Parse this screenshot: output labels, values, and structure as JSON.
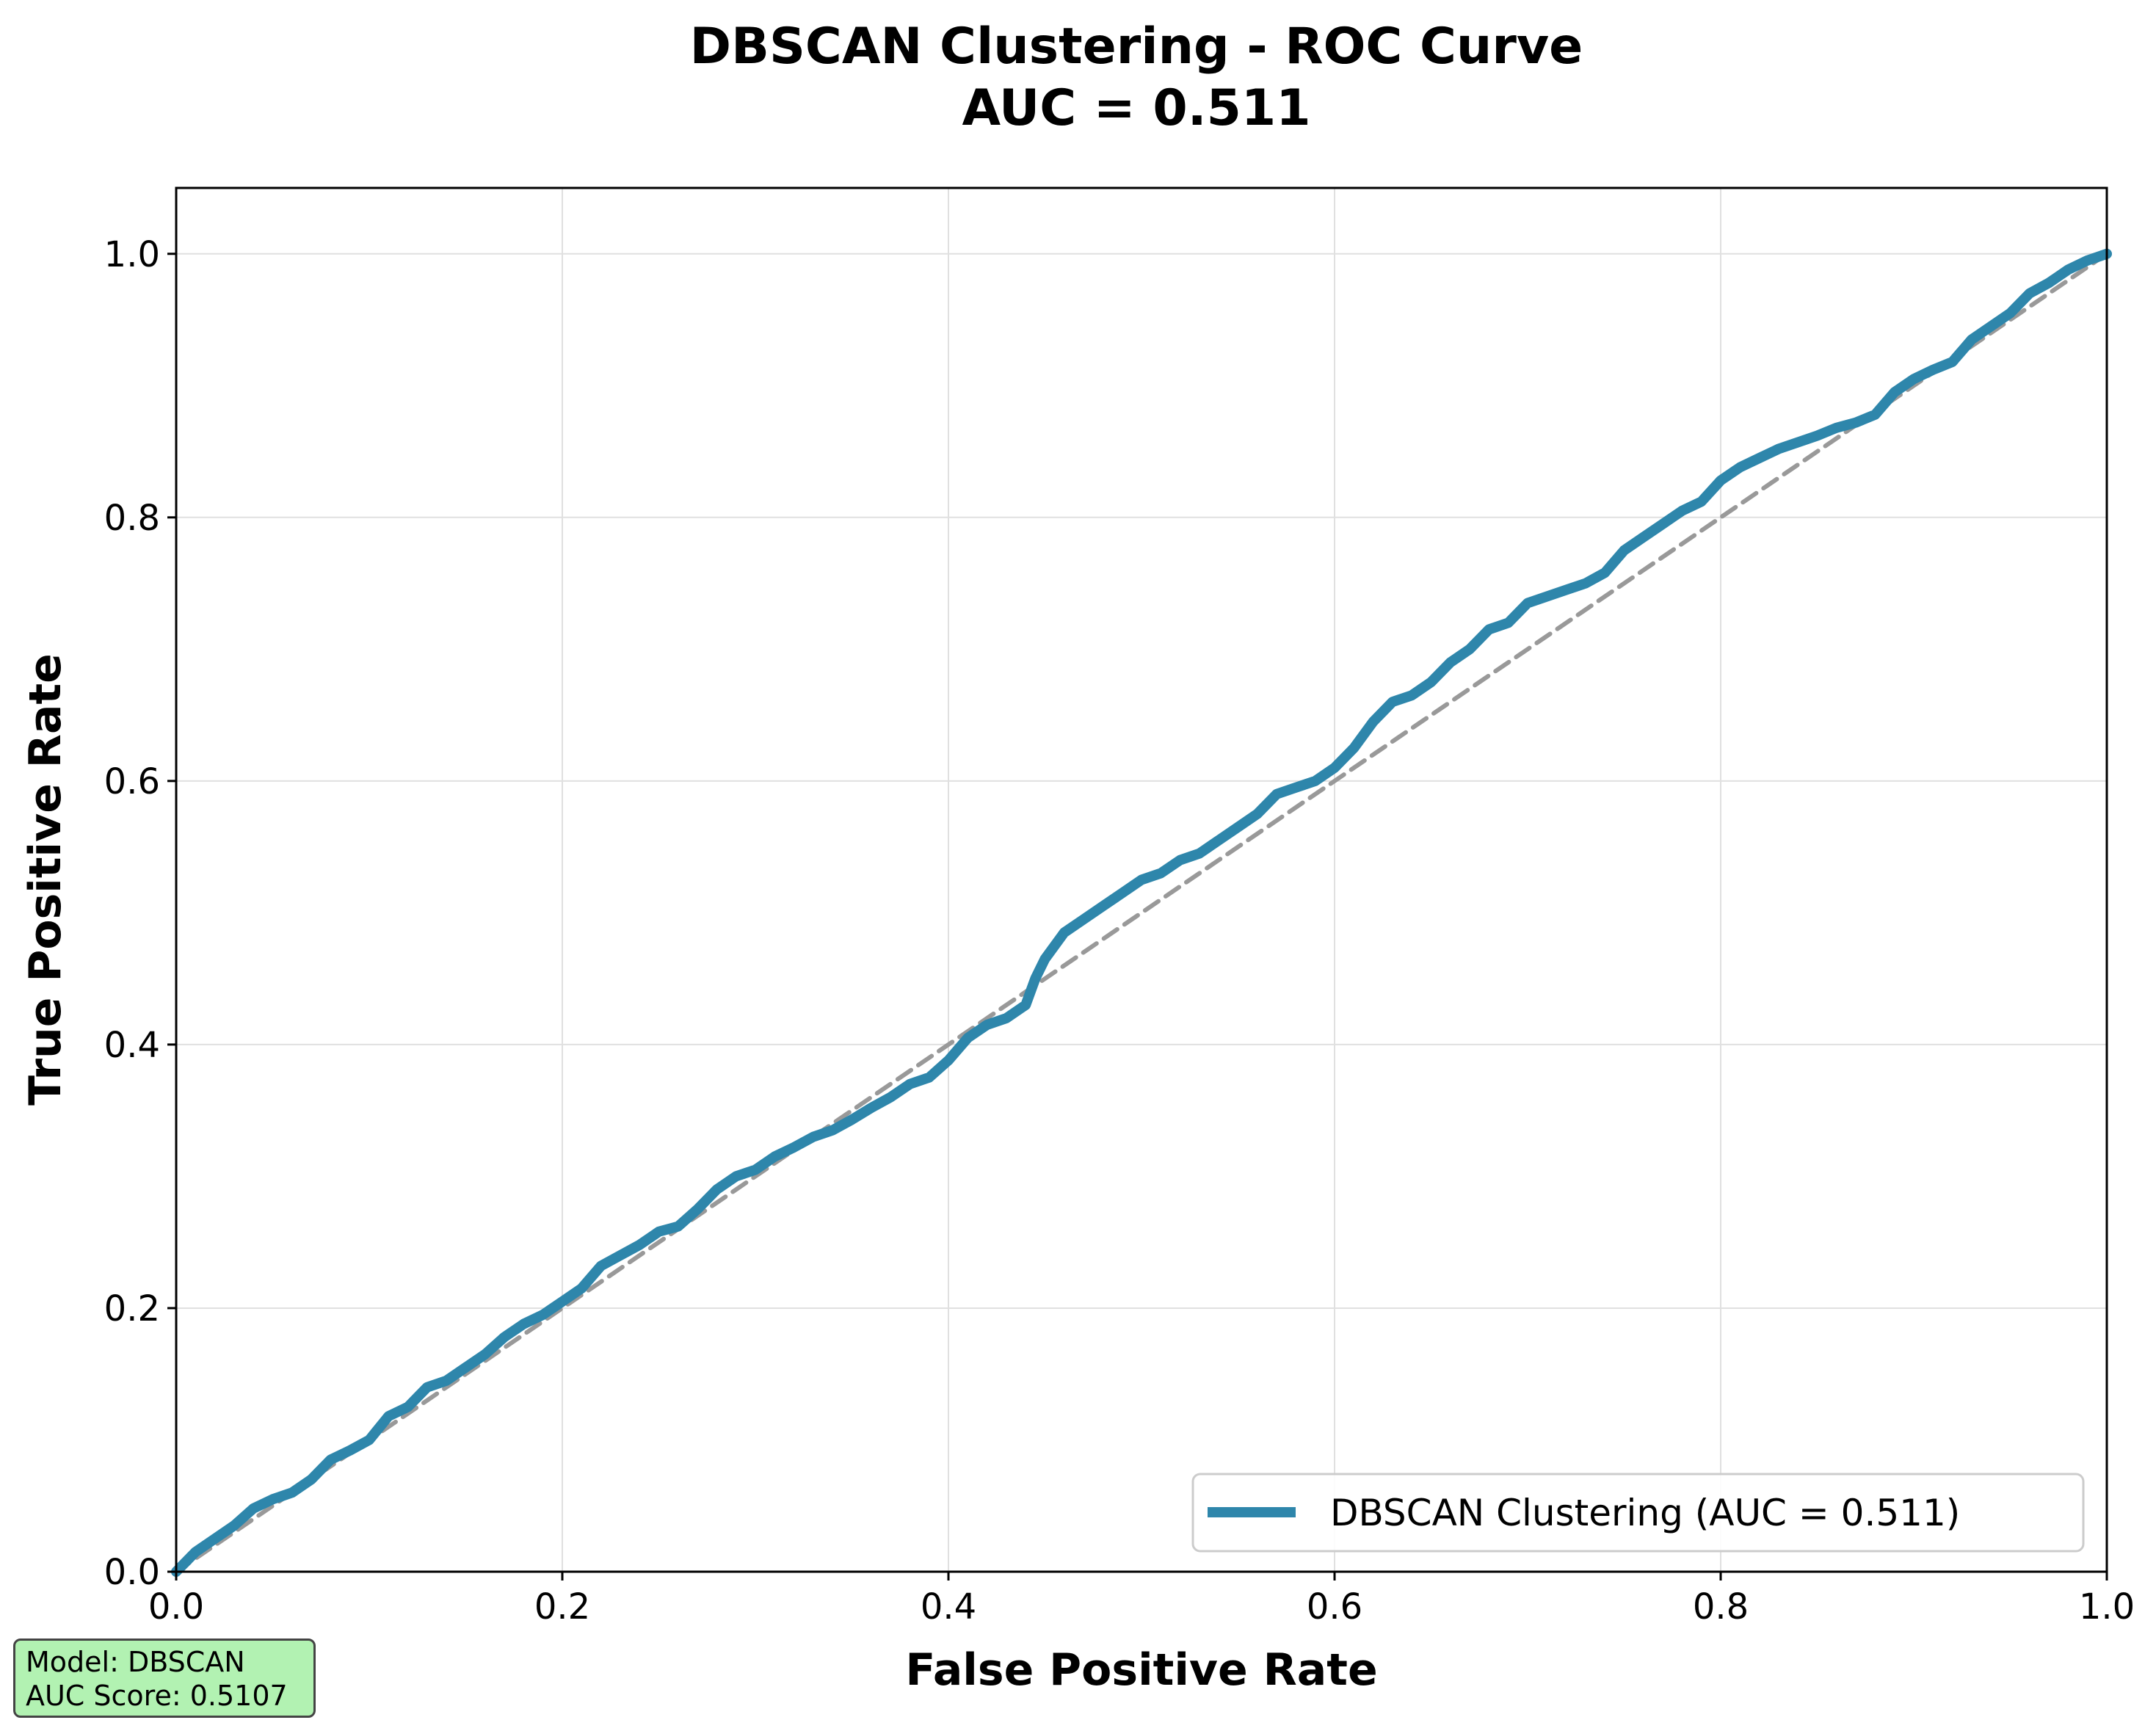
{
  "chart_data": {
    "type": "line",
    "title": [
      "DBSCAN Clustering - ROC Curve",
      "AUC = 0.511"
    ],
    "xlabel": "False Positive Rate",
    "ylabel": "True Positive Rate",
    "xlim": [
      0.0,
      1.0
    ],
    "ylim": [
      0.0,
      1.05
    ],
    "x_ticks": [
      "0.0",
      "0.2",
      "0.4",
      "0.6",
      "0.8",
      "1.0"
    ],
    "y_ticks": [
      "0.0",
      "0.2",
      "0.4",
      "0.6",
      "0.8",
      "1.0"
    ],
    "grid": true,
    "legend": {
      "placement": "lower-right",
      "entries": [
        "DBSCAN Clustering (AUC = 0.511)"
      ]
    },
    "series": [
      {
        "name": "DBSCAN Clustering (AUC = 0.511)",
        "color": "#2e86ab",
        "style": "solid",
        "x": [
          0.0,
          0.01,
          0.02,
          0.03,
          0.04,
          0.05,
          0.06,
          0.07,
          0.08,
          0.09,
          0.1,
          0.11,
          0.12,
          0.13,
          0.14,
          0.15,
          0.16,
          0.17,
          0.18,
          0.19,
          0.2,
          0.21,
          0.22,
          0.23,
          0.24,
          0.25,
          0.26,
          0.27,
          0.28,
          0.29,
          0.3,
          0.31,
          0.32,
          0.33,
          0.34,
          0.35,
          0.36,
          0.37,
          0.38,
          0.39,
          0.4,
          0.41,
          0.42,
          0.43,
          0.44,
          0.445,
          0.45,
          0.46,
          0.47,
          0.48,
          0.49,
          0.5,
          0.51,
          0.52,
          0.53,
          0.54,
          0.55,
          0.56,
          0.57,
          0.58,
          0.59,
          0.6,
          0.61,
          0.62,
          0.63,
          0.64,
          0.65,
          0.66,
          0.67,
          0.68,
          0.69,
          0.7,
          0.71,
          0.72,
          0.73,
          0.74,
          0.75,
          0.76,
          0.77,
          0.78,
          0.79,
          0.8,
          0.81,
          0.82,
          0.83,
          0.84,
          0.85,
          0.86,
          0.87,
          0.88,
          0.89,
          0.9,
          0.91,
          0.92,
          0.93,
          0.94,
          0.95,
          0.96,
          0.97,
          0.98,
          0.99,
          1.0
        ],
        "y": [
          0.0,
          0.015,
          0.025,
          0.035,
          0.048,
          0.055,
          0.06,
          0.07,
          0.085,
          0.092,
          0.1,
          0.118,
          0.125,
          0.14,
          0.145,
          0.155,
          0.165,
          0.178,
          0.188,
          0.195,
          0.205,
          0.215,
          0.232,
          0.24,
          0.248,
          0.258,
          0.262,
          0.275,
          0.29,
          0.3,
          0.305,
          0.315,
          0.322,
          0.33,
          0.335,
          0.343,
          0.352,
          0.36,
          0.37,
          0.375,
          0.388,
          0.405,
          0.415,
          0.42,
          0.43,
          0.45,
          0.465,
          0.485,
          0.495,
          0.505,
          0.515,
          0.525,
          0.53,
          0.54,
          0.545,
          0.555,
          0.565,
          0.575,
          0.59,
          0.595,
          0.6,
          0.61,
          0.625,
          0.645,
          0.66,
          0.665,
          0.675,
          0.69,
          0.7,
          0.715,
          0.72,
          0.735,
          0.74,
          0.745,
          0.75,
          0.758,
          0.775,
          0.785,
          0.795,
          0.805,
          0.812,
          0.828,
          0.838,
          0.845,
          0.852,
          0.857,
          0.862,
          0.868,
          0.872,
          0.878,
          0.895,
          0.905,
          0.912,
          0.918,
          0.935,
          0.945,
          0.955,
          0.97,
          0.978,
          0.988,
          0.995,
          1.0
        ]
      },
      {
        "name": "",
        "color": "#999999",
        "style": "dashed",
        "x": [
          0.0,
          1.0
        ],
        "y": [
          0.0,
          1.0
        ]
      }
    ]
  },
  "info_box": {
    "line1": "Model: DBSCAN",
    "line2": "AUC Score: 0.5107",
    "background": "#b2f2b2"
  }
}
